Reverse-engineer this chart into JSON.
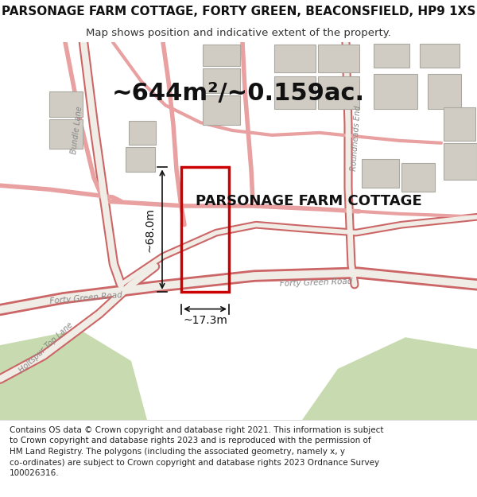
{
  "title": "PARSONAGE FARM COTTAGE, FORTY GREEN, BEACONSFIELD, HP9 1XS",
  "subtitle": "Map shows position and indicative extent of the property.",
  "area_label": "~644m²/~0.159ac.",
  "property_label": "PARSONAGE FARM COTTAGE",
  "dim_width": "~17.3m",
  "dim_height": "~68.0m",
  "footer_lines": [
    "Contains OS data © Crown copyright and database right 2021. This information is subject",
    "to Crown copyright and database rights 2023 and is reproduced with the permission of",
    "HM Land Registry. The polygons (including the associated geometry, namely x, y",
    "co-ordinates) are subject to Crown copyright and database rights 2023 Ordnance Survey",
    "100026316."
  ],
  "bg_color": "#f5f5f0",
  "map_bg": "#ede9e3",
  "road_color_light": "#e8a0a0",
  "road_color_dark": "#cc6666",
  "property_outline_color": "#cc0000",
  "green_area": "#c8dab0",
  "building_color": "#d0ccc4",
  "building_edge": "#aaa8a0",
  "title_fontsize": 11,
  "subtitle_fontsize": 9.5,
  "area_fontsize": 22,
  "property_label_fontsize": 13,
  "dim_fontsize": 10,
  "footer_fontsize": 7.5
}
